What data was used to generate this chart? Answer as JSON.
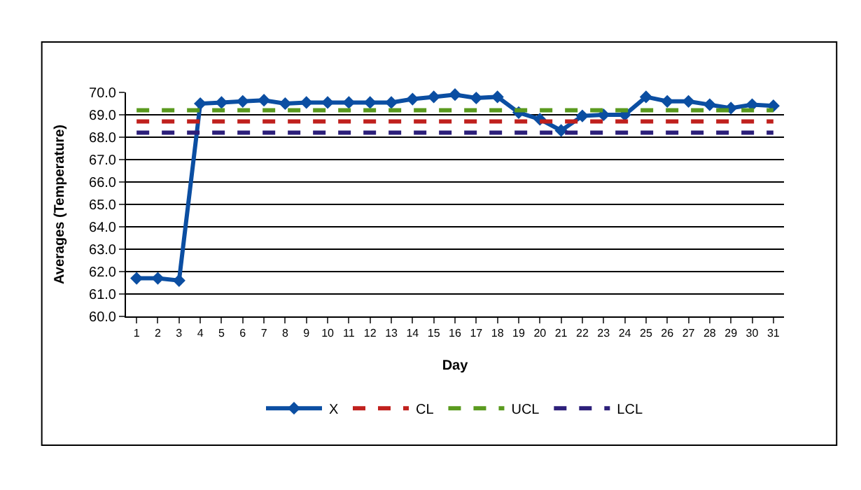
{
  "chart_data": {
    "type": "line",
    "xlabel": "Day",
    "ylabel": "Averages (Temperature)",
    "x": [
      1,
      2,
      3,
      4,
      5,
      6,
      7,
      8,
      9,
      10,
      11,
      12,
      13,
      14,
      15,
      16,
      17,
      18,
      19,
      20,
      21,
      22,
      23,
      24,
      25,
      26,
      27,
      28,
      29,
      30,
      31
    ],
    "xlim": [
      0.5,
      31.5
    ],
    "xticks": [
      1,
      2,
      3,
      4,
      5,
      6,
      7,
      8,
      9,
      10,
      11,
      12,
      13,
      14,
      15,
      16,
      17,
      18,
      19,
      20,
      21,
      22,
      23,
      24,
      25,
      26,
      27,
      28,
      29,
      30,
      31
    ],
    "series": [
      {
        "name": "X",
        "color": "#0b4ea2",
        "marker": "diamond",
        "line_style": "solid",
        "values": [
          61.7,
          61.7,
          61.6,
          69.5,
          69.55,
          69.6,
          69.65,
          69.5,
          69.55,
          69.55,
          69.55,
          69.55,
          69.55,
          69.7,
          69.8,
          69.9,
          69.75,
          69.8,
          69.1,
          68.8,
          68.3,
          68.95,
          69.0,
          69.0,
          69.8,
          69.6,
          69.6,
          69.45,
          69.3,
          69.45,
          69.4
        ]
      },
      {
        "name": "CL",
        "color": "#c0201d",
        "marker": "none",
        "line_style": "dashed",
        "values": [
          68.7,
          68.7,
          68.7,
          68.7,
          68.7,
          68.7,
          68.7,
          68.7,
          68.7,
          68.7,
          68.7,
          68.7,
          68.7,
          68.7,
          68.7,
          68.7,
          68.7,
          68.7,
          68.7,
          68.7,
          68.7,
          68.7,
          68.7,
          68.7,
          68.7,
          68.7,
          68.7,
          68.7,
          68.7,
          68.7,
          68.7
        ]
      },
      {
        "name": "UCL",
        "color": "#5a9a1e",
        "marker": "none",
        "line_style": "dashed",
        "values": [
          69.2,
          69.2,
          69.2,
          69.2,
          69.2,
          69.2,
          69.2,
          69.2,
          69.2,
          69.2,
          69.2,
          69.2,
          69.2,
          69.2,
          69.2,
          69.2,
          69.2,
          69.2,
          69.2,
          69.2,
          69.2,
          69.2,
          69.2,
          69.2,
          69.2,
          69.2,
          69.2,
          69.2,
          69.2,
          69.2,
          69.2
        ]
      },
      {
        "name": "LCL",
        "color": "#2c1f7a",
        "marker": "none",
        "line_style": "dashed",
        "values": [
          68.2,
          68.2,
          68.2,
          68.2,
          68.2,
          68.2,
          68.2,
          68.2,
          68.2,
          68.2,
          68.2,
          68.2,
          68.2,
          68.2,
          68.2,
          68.2,
          68.2,
          68.2,
          68.2,
          68.2,
          68.2,
          68.2,
          68.2,
          68.2,
          68.2,
          68.2,
          68.2,
          68.2,
          68.2,
          68.2,
          68.2
        ]
      }
    ],
    "ylim": [
      60,
      70
    ],
    "yticks": [
      {
        "value": 60,
        "label": "60.0"
      },
      {
        "value": 61,
        "label": "61.0"
      },
      {
        "value": 62,
        "label": "62.0"
      },
      {
        "value": 63,
        "label": "63.0"
      },
      {
        "value": 64,
        "label": "64.0"
      },
      {
        "value": 65,
        "label": "65.0"
      },
      {
        "value": 66,
        "label": "66.0"
      },
      {
        "value": 67,
        "label": "67.0"
      },
      {
        "value": 68,
        "label": "68.0"
      },
      {
        "value": 69,
        "label": "69.0"
      },
      {
        "value": 70,
        "label": "70.0"
      }
    ],
    "grid": "y",
    "legend": "bottom"
  }
}
